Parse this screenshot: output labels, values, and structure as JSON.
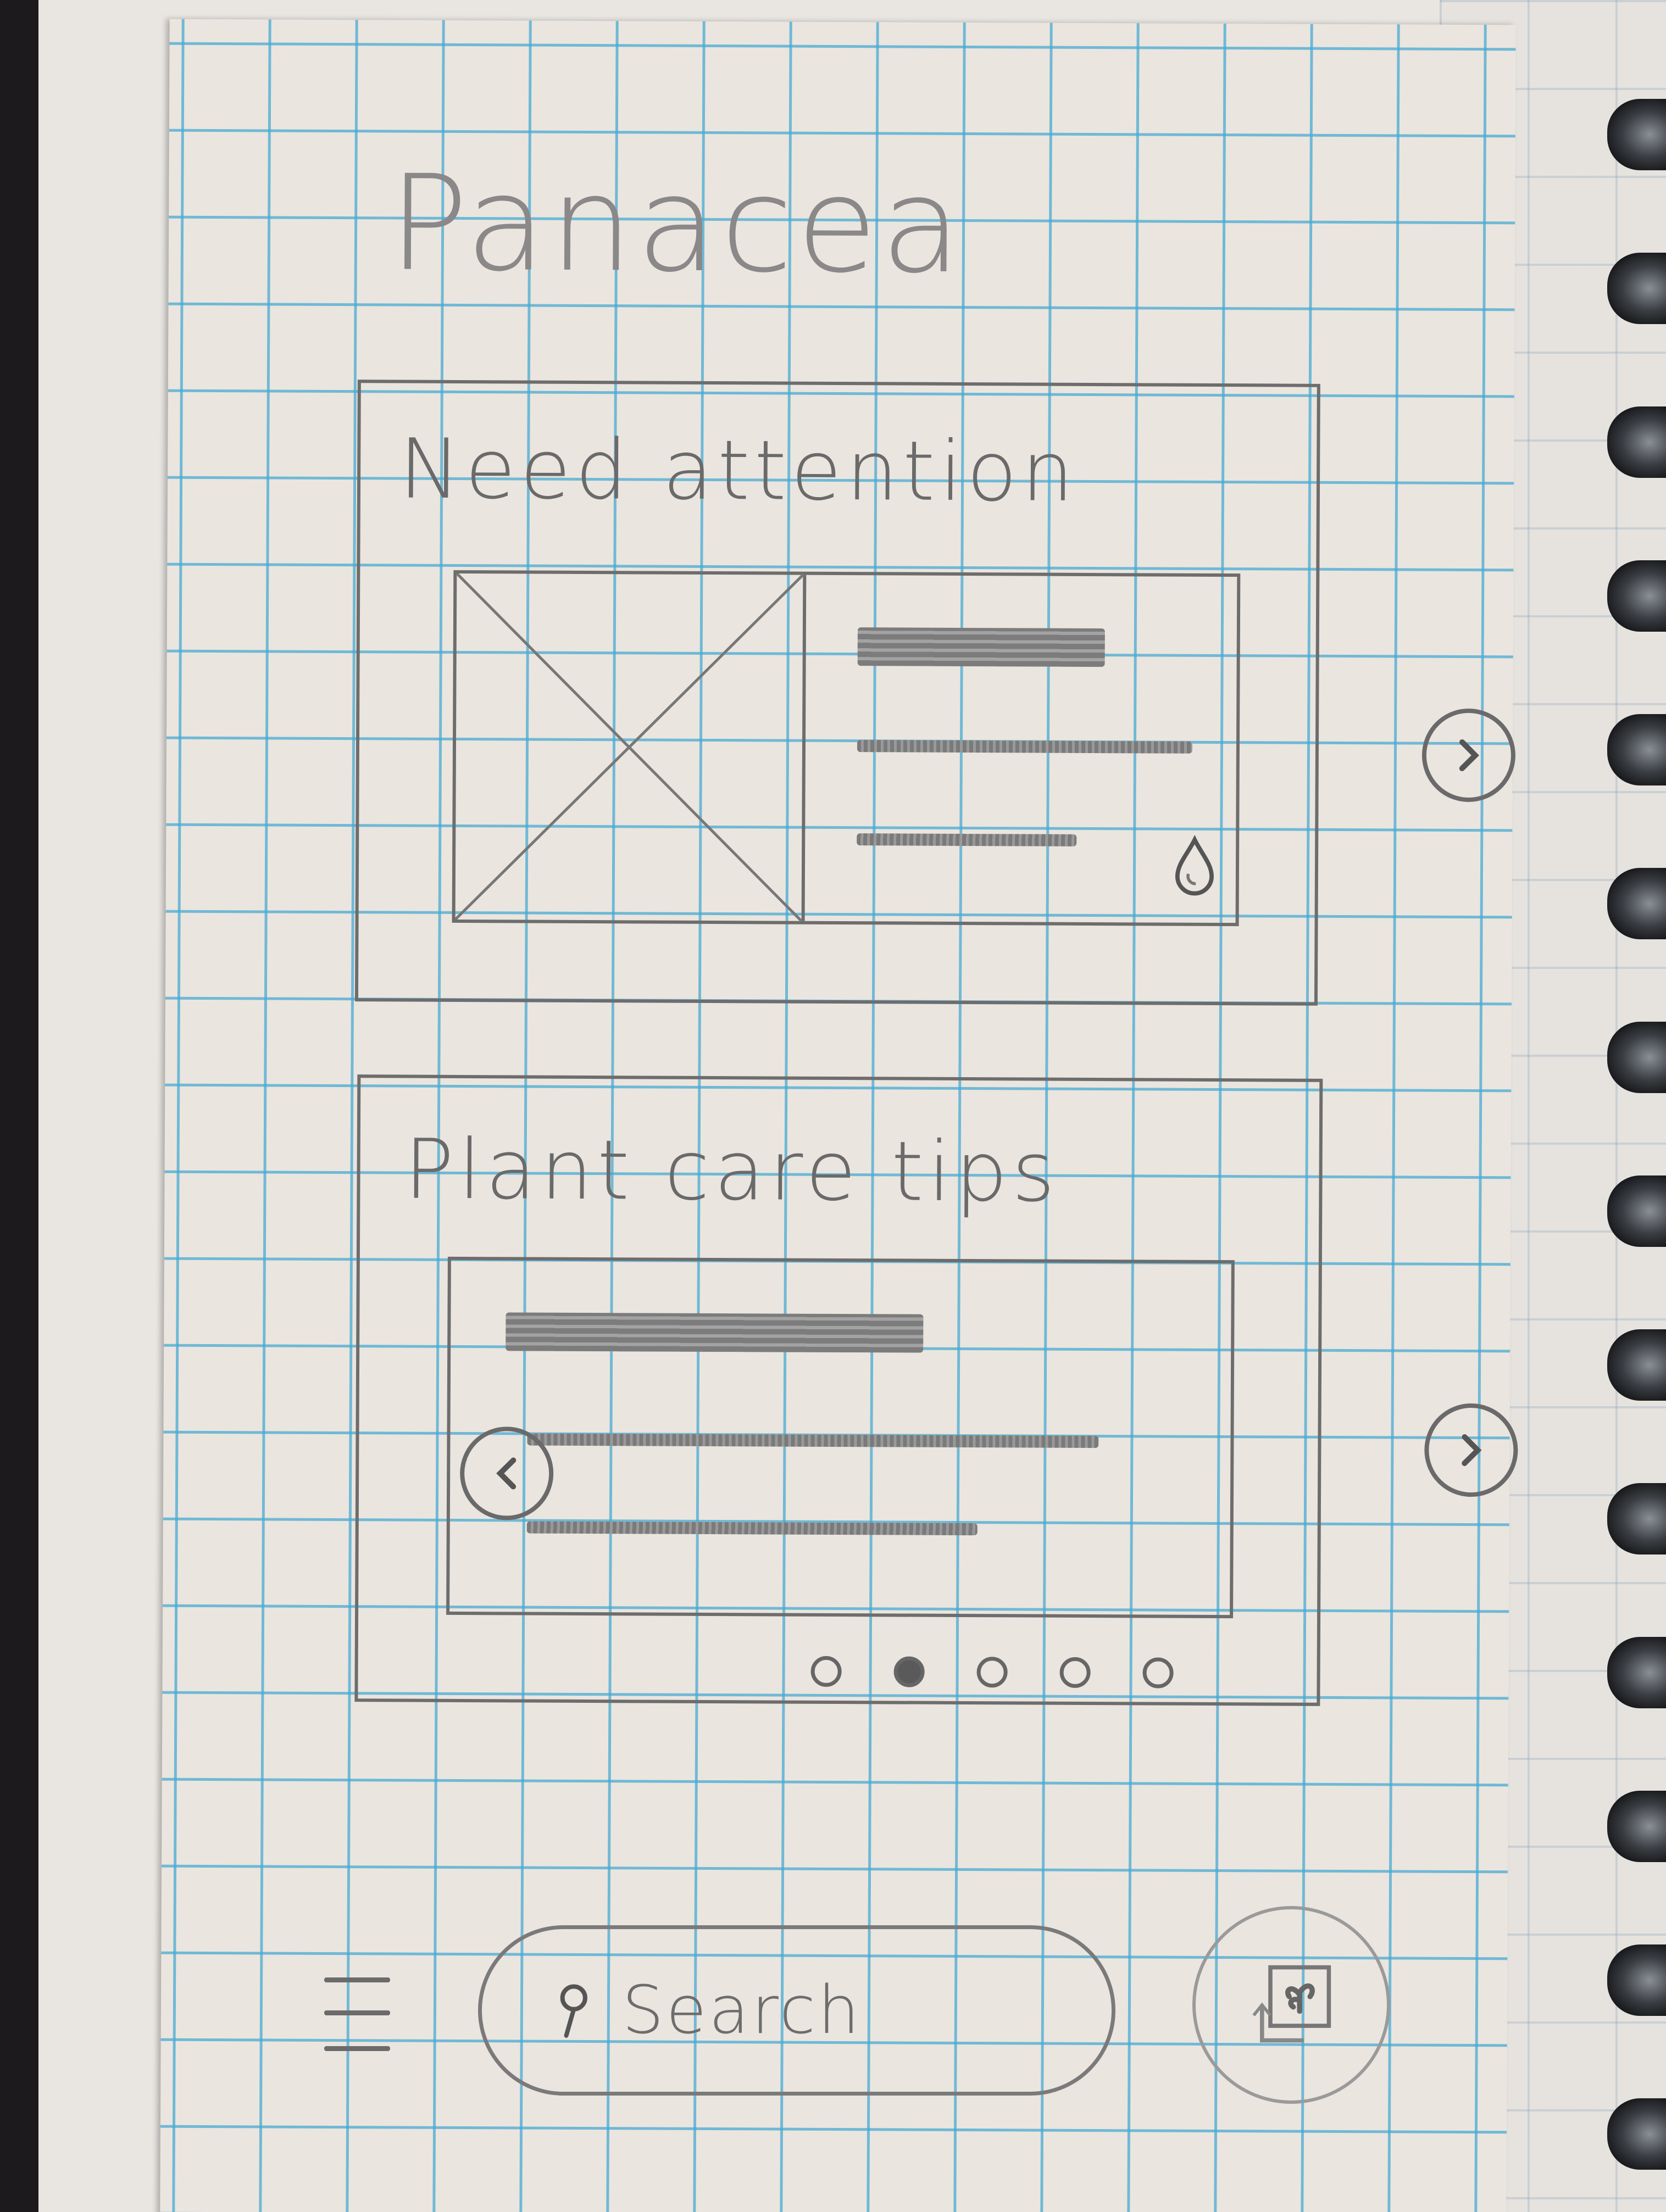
{
  "app": {
    "title": "Panacea"
  },
  "sections": {
    "need_attention": {
      "title": "Need attention"
    },
    "plant_care_tips": {
      "title": "Plant care tips"
    }
  },
  "carousel": {
    "page_count": 5,
    "active_index": 1
  },
  "search": {
    "placeholder": "Search"
  },
  "icons": {
    "menu": "hamburger-menu-icon",
    "search": "magnifier-icon",
    "camera": "plant-photo-icon",
    "next": "chevron-right-icon",
    "prev": "chevron-left-icon",
    "water": "water-drop-icon"
  }
}
